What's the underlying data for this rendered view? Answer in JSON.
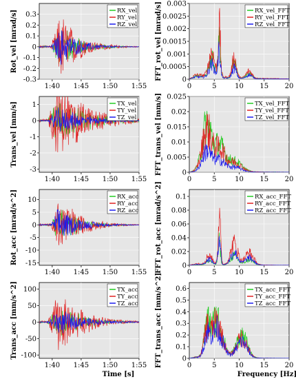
{
  "colors": {
    "green": "#22cc22",
    "red": "#e02020",
    "blue": "#1a1aee",
    "background": "#e6e6e6"
  },
  "x_labels": {
    "time": "Time [s]",
    "freq": "Frequency [Hz]"
  },
  "chart_data": [
    {
      "type": "line",
      "domain": "time",
      "ylabel": "Rot_vel [mrad/s]",
      "ylim": [
        -0.3,
        0.4
      ],
      "yticks": [
        "0.3",
        "0.2",
        "0.1",
        "0",
        "-0.1",
        "-0.2",
        "-0.3"
      ],
      "ytick_values": [
        0.3,
        0.2,
        0.1,
        0,
        -0.1,
        -0.2,
        -0.3
      ],
      "xtick_labels": [
        "1:40",
        "1:45",
        "1:50",
        "1:55"
      ],
      "envelope": {
        "start": 0.12,
        "peak_at": 0.22,
        "decay": 0.18
      },
      "series": [
        {
          "name": "RX_vel",
          "color": "green",
          "peak": 0.25
        },
        {
          "name": "RY_vel",
          "color": "red",
          "peak": 0.36
        },
        {
          "name": "RZ_vel",
          "color": "blue",
          "peak": 0.2
        }
      ]
    },
    {
      "type": "line",
      "domain": "freq",
      "ylabel": "FFT_rot_vel [mrad/s]",
      "ylim": [
        0,
        0.003
      ],
      "yticks": [
        "0.003",
        "0.0025",
        "0.002",
        "0.0015",
        "0.001",
        "0.0005",
        "0"
      ],
      "ytick_values": [
        0.003,
        0.0025,
        0.002,
        0.0015,
        0.001,
        0.0005,
        0
      ],
      "xtick_labels": [
        "0",
        "5",
        "10",
        "15",
        "20"
      ],
      "spectrum": {
        "peaks": [
          [
            6,
            0.0028,
            0.35
          ],
          [
            4.5,
            0.0014,
            0.8
          ],
          [
            9,
            0.0011,
            0.6
          ],
          [
            12,
            0.0004,
            0.8
          ]
        ],
        "base": 0.0003
      },
      "series": [
        {
          "name": "RX_vel_FFT",
          "color": "green",
          "scale": 0.75
        },
        {
          "name": "RY_vel_FFT",
          "color": "red",
          "scale": 1.0
        },
        {
          "name": "RZ_vel_FFT",
          "color": "blue",
          "scale": 0.55
        }
      ]
    },
    {
      "type": "line",
      "domain": "time",
      "ylabel": "Trans_vel [mm/s]",
      "ylim": [
        -3.2,
        1.5
      ],
      "yticks": [
        "1",
        "0",
        "-1",
        "-2",
        "-3"
      ],
      "ytick_values": [
        1,
        0,
        -1,
        -2,
        -3
      ],
      "xtick_labels": [
        "1:40",
        "1:45",
        "1:50",
        "1:55"
      ],
      "envelope": {
        "start": 0.08,
        "peak_at": 0.2,
        "decay": 0.3
      },
      "series": [
        {
          "name": "TX_vel",
          "color": "green",
          "peak": 1.6
        },
        {
          "name": "TY_vel",
          "color": "red",
          "peak": 2.8
        },
        {
          "name": "TZ_vel",
          "color": "blue",
          "peak": 0.9
        }
      ]
    },
    {
      "type": "line",
      "domain": "freq",
      "ylabel": "FFT_trans_vel [mm/s]",
      "ylim": [
        0,
        0.025
      ],
      "yticks": [
        "0.025",
        "0.02",
        "0.015",
        "0.01",
        "0.005",
        "0"
      ],
      "ytick_values": [
        0.025,
        0.02,
        0.015,
        0.01,
        0.005,
        0
      ],
      "xtick_labels": [
        "0",
        "5",
        "10",
        "15",
        "20"
      ],
      "spectrum": {
        "peaks": [
          [
            3.5,
            0.022,
            1.3
          ],
          [
            6,
            0.012,
            1.5
          ],
          [
            9,
            0.005,
            2.0
          ]
        ],
        "base": 0.001
      },
      "series": [
        {
          "name": "TX_vel_FFT",
          "color": "green",
          "scale": 1.0
        },
        {
          "name": "TY_vel_FFT",
          "color": "red",
          "scale": 0.9
        },
        {
          "name": "TZ_vel_FFT",
          "color": "blue",
          "scale": 0.45
        }
      ]
    },
    {
      "type": "line",
      "domain": "time",
      "ylabel": "Rot_acc [mrad/s^2]",
      "ylim": [
        -16,
        14
      ],
      "yticks": [
        "10",
        "5",
        "0",
        "-5",
        "-10",
        "-15"
      ],
      "ytick_values": [
        10,
        5,
        0,
        -5,
        -10,
        -15
      ],
      "xtick_labels": [
        "1:40",
        "1:45",
        "1:50",
        "1:55"
      ],
      "envelope": {
        "start": 0.12,
        "peak_at": 0.2,
        "decay": 0.2
      },
      "series": [
        {
          "name": "RX_acc",
          "color": "green",
          "peak": 9
        },
        {
          "name": "RY_acc",
          "color": "red",
          "peak": 14
        },
        {
          "name": "RZ_acc",
          "color": "blue",
          "peak": 8
        }
      ]
    },
    {
      "type": "line",
      "domain": "freq",
      "ylabel": "FFT_rot_acc [mrad/s^2]",
      "ylim": [
        0,
        0.11
      ],
      "yticks": [
        "0.1",
        "0.08",
        "0.06",
        "0.04",
        "0.02",
        "0"
      ],
      "ytick_values": [
        0.1,
        0.08,
        0.06,
        0.04,
        0.02,
        0
      ],
      "xtick_labels": [
        "0",
        "5",
        "10",
        "15",
        "20"
      ],
      "spectrum": {
        "peaks": [
          [
            6,
            0.105,
            0.35
          ],
          [
            9,
            0.045,
            1.0
          ],
          [
            12,
            0.025,
            1.2
          ],
          [
            4,
            0.02,
            0.8
          ]
        ],
        "base": 0.004
      },
      "series": [
        {
          "name": "RX_acc_FFT",
          "color": "green",
          "scale": 0.45
        },
        {
          "name": "RY_acc_FFT",
          "color": "red",
          "scale": 1.0
        },
        {
          "name": "RZ_acc_FFT",
          "color": "blue",
          "scale": 0.6
        }
      ]
    },
    {
      "type": "line",
      "domain": "time",
      "ylabel": "Trans_acc [mm/s^2]",
      "ylim": [
        -110,
        120
      ],
      "yticks": [
        "100",
        "50",
        "0",
        "-50",
        "-100"
      ],
      "ytick_values": [
        100,
        50,
        0,
        -50,
        -100
      ],
      "xtick_labels": [
        "1:40",
        "1:45",
        "1:50",
        "1:55"
      ],
      "envelope": {
        "start": 0.08,
        "peak_at": 0.2,
        "decay": 0.25
      },
      "series": [
        {
          "name": "TX_acc",
          "color": "green",
          "peak": 60
        },
        {
          "name": "TY_acc",
          "color": "red",
          "peak": 105
        },
        {
          "name": "TZ_acc",
          "color": "blue",
          "peak": 45
        }
      ]
    },
    {
      "type": "line",
      "domain": "freq",
      "ylabel": "FFT_trans_acc [mm/s^2]",
      "ylim": [
        0,
        0.65
      ],
      "yticks": [
        "0.6",
        "0.5",
        "0.4",
        "0.3",
        "0.2",
        "0.1",
        "0"
      ],
      "ytick_values": [
        0.6,
        0.5,
        0.4,
        0.3,
        0.2,
        0.1,
        0
      ],
      "xtick_labels": [
        "0",
        "5",
        "10",
        "15",
        "20"
      ],
      "spectrum": {
        "peaks": [
          [
            5.5,
            0.52,
            1.6
          ],
          [
            10.5,
            0.3,
            1.5
          ],
          [
            3.5,
            0.35,
            0.8
          ]
        ],
        "base": 0.02
      },
      "series": [
        {
          "name": "TX_acc_FFT",
          "color": "green",
          "scale": 0.95
        },
        {
          "name": "TY_acc_FFT",
          "color": "red",
          "scale": 0.85
        },
        {
          "name": "TZ_acc_FFT",
          "color": "blue",
          "scale": 0.7
        }
      ]
    }
  ]
}
